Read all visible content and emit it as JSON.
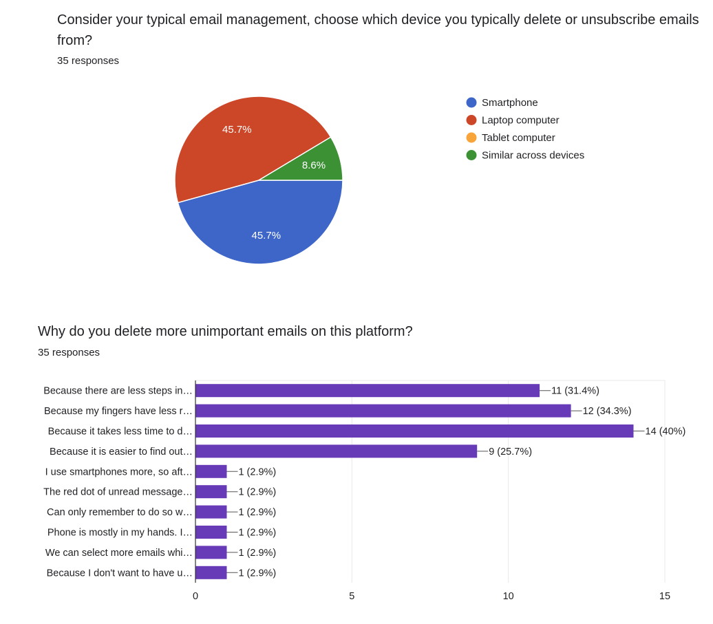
{
  "question1": {
    "title": "Consider your typical email management, choose which device you typically delete or unsubscribe emails from?",
    "responses": "35 responses"
  },
  "question2": {
    "title": "Why do you delete more unimportant emails on this platform?",
    "responses": "35 responses"
  },
  "chart_data": [
    {
      "type": "pie",
      "legend_position": "right",
      "slices": [
        {
          "name": "Smartphone",
          "value": 45.7,
          "label": "45.7%",
          "color": "#3d66c8"
        },
        {
          "name": "Laptop computer",
          "value": 45.7,
          "label": "45.7%",
          "color": "#cc4628"
        },
        {
          "name": "Tablet computer",
          "value": 0,
          "label": "",
          "color": "#f7a43a"
        },
        {
          "name": "Similar across devices",
          "value": 8.6,
          "label": "8.6%",
          "color": "#3b9134"
        }
      ]
    },
    {
      "type": "bar",
      "orientation": "horizontal",
      "bar_color": "#673ab7",
      "categories": [
        "Because there are less steps in…",
        "Because my fingers have less r…",
        "Because it takes less time to d…",
        "Because it is easier to find out…",
        "I use smartphones more, so aft…",
        "The red dot of unread message…",
        "Can only remember to do so w…",
        "Phone is mostly in my hands. I…",
        "We can select more emails whi…",
        "Because I don't want to have u…"
      ],
      "values": [
        11,
        12,
        14,
        9,
        1,
        1,
        1,
        1,
        1,
        1
      ],
      "value_labels": [
        "11 (31.4%)",
        "12 (34.3%)",
        "14 (40%)",
        "9 (25.7%)",
        "1 (2.9%)",
        "1 (2.9%)",
        "1 (2.9%)",
        "1 (2.9%)",
        "1 (2.9%)",
        "1 (2.9%)"
      ],
      "xlim": [
        0,
        15
      ],
      "xticks": [
        0,
        5,
        10,
        15
      ],
      "grid": true
    }
  ]
}
